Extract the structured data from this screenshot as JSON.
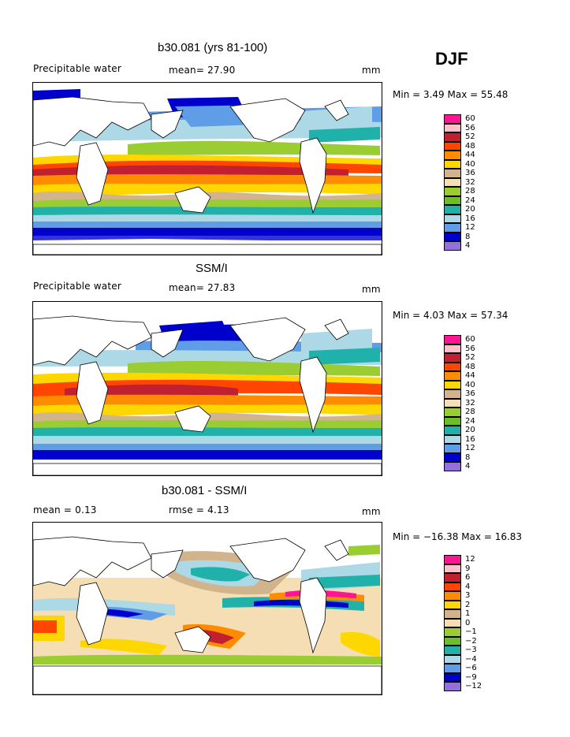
{
  "season": "DJF",
  "panels": [
    {
      "title": "b30.081 (yrs 81-100)",
      "left_label": "Precipitable water",
      "mean_label": "mean=  27.90",
      "right_label": "mm",
      "minmax": "Min =    3.49  Max =  55.48",
      "colorbar": {
        "labels": [
          "60",
          "56",
          "52",
          "48",
          "44",
          "40",
          "36",
          "32",
          "28",
          "24",
          "20",
          "16",
          "12",
          "8",
          "4"
        ],
        "colors": [
          "#ff1493",
          "#ffc0cb",
          "#c02030",
          "#ff4500",
          "#ff8c00",
          "#ffd700",
          "#d2b48c",
          "#f5deb3",
          "#9acd32",
          "#6abf2a",
          "#20b2aa",
          "#add8e6",
          "#5f9ee6",
          "#0000cd",
          "#9370db"
        ]
      }
    },
    {
      "title": "SSM/I",
      "left_label": "Precipitable water",
      "mean_label": "mean=  27.83",
      "right_label": "mm",
      "minmax": "Min =    4.03  Max =  57.34",
      "colorbar": {
        "labels": [
          "60",
          "56",
          "52",
          "48",
          "44",
          "40",
          "36",
          "32",
          "28",
          "24",
          "20",
          "16",
          "12",
          "8",
          "4"
        ],
        "colors": [
          "#ff1493",
          "#ffc0cb",
          "#c02030",
          "#ff4500",
          "#ff8c00",
          "#ffd700",
          "#d2b48c",
          "#f5deb3",
          "#9acd32",
          "#6abf2a",
          "#20b2aa",
          "#add8e6",
          "#5f9ee6",
          "#0000cd",
          "#9370db"
        ]
      }
    },
    {
      "title": "b30.081 - SSM/I",
      "left_label": "mean =    0.13",
      "mean_label": "rmse =    4.13",
      "right_label": "mm",
      "minmax": "Min = −16.38  Max =  16.83",
      "colorbar": {
        "labels": [
          "12",
          "9",
          "6",
          "4",
          "3",
          "2",
          "1",
          "0",
          "−1",
          "−2",
          "−3",
          "−4",
          "−6",
          "−9",
          "−12"
        ],
        "colors": [
          "#ff1493",
          "#ffc0cb",
          "#c02030",
          "#ff4500",
          "#ff8c00",
          "#ffd700",
          "#d2b48c",
          "#f5deb3",
          "#9acd32",
          "#6abf2a",
          "#20b2aa",
          "#add8e6",
          "#5f9ee6",
          "#0000cd",
          "#9370db"
        ]
      }
    }
  ]
}
